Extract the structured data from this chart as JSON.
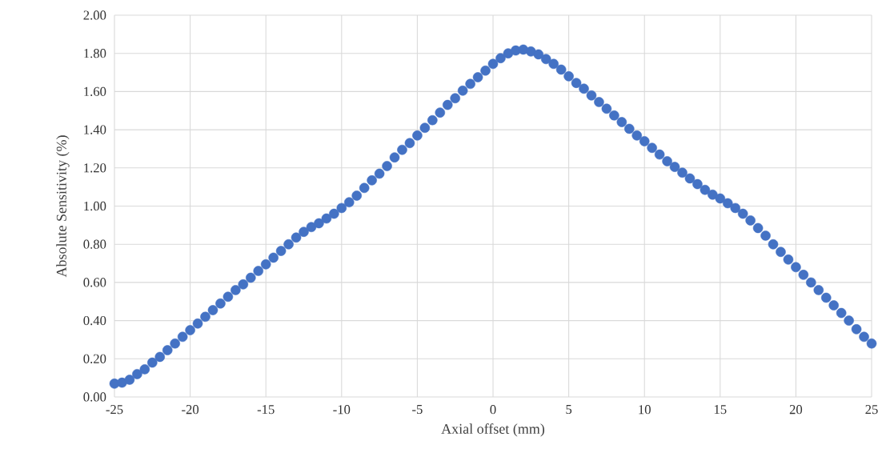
{
  "chart_data": {
    "type": "scatter",
    "xlabel": "Axial offset (mm)",
    "ylabel": "Absolute Sensitivity (%)",
    "x": [
      -25,
      -24.5,
      -24,
      -23.5,
      -23,
      -22.5,
      -22,
      -21.5,
      -21,
      -20.5,
      -20,
      -19.5,
      -19,
      -18.5,
      -18,
      -17.5,
      -17,
      -16.5,
      -16,
      -15.5,
      -15,
      -14.5,
      -14,
      -13.5,
      -13,
      -12.5,
      -12,
      -11.5,
      -11,
      -10.5,
      -10,
      -9.5,
      -9,
      -8.5,
      -8,
      -7.5,
      -7,
      -6.5,
      -6,
      -5.5,
      -5,
      -4.5,
      -4,
      -3.5,
      -3,
      -2.5,
      -2,
      -1.5,
      -1,
      -0.5,
      0,
      0.5,
      1,
      1.5,
      2,
      2.5,
      3,
      3.5,
      4,
      4.5,
      5,
      5.5,
      6,
      6.5,
      7,
      7.5,
      8,
      8.5,
      9,
      9.5,
      10,
      10.5,
      11,
      11.5,
      12,
      12.5,
      13,
      13.5,
      14,
      14.5,
      15,
      15.5,
      16,
      16.5,
      17,
      17.5,
      18,
      18.5,
      19,
      19.5,
      20,
      20.5,
      21,
      21.5,
      22,
      22.5,
      23,
      23.5,
      24,
      24.5,
      25
    ],
    "values": [
      0.07,
      0.075,
      0.09,
      0.12,
      0.145,
      0.18,
      0.21,
      0.245,
      0.28,
      0.315,
      0.35,
      0.385,
      0.42,
      0.455,
      0.49,
      0.525,
      0.56,
      0.59,
      0.625,
      0.66,
      0.695,
      0.73,
      0.765,
      0.8,
      0.835,
      0.865,
      0.89,
      0.91,
      0.935,
      0.96,
      0.99,
      1.02,
      1.055,
      1.095,
      1.135,
      1.17,
      1.21,
      1.255,
      1.295,
      1.33,
      1.37,
      1.41,
      1.45,
      1.49,
      1.53,
      1.565,
      1.605,
      1.64,
      1.675,
      1.71,
      1.745,
      1.775,
      1.8,
      1.815,
      1.82,
      1.81,
      1.795,
      1.77,
      1.745,
      1.715,
      1.68,
      1.645,
      1.615,
      1.58,
      1.545,
      1.51,
      1.475,
      1.44,
      1.405,
      1.37,
      1.34,
      1.305,
      1.27,
      1.235,
      1.205,
      1.175,
      1.145,
      1.115,
      1.085,
      1.06,
      1.04,
      1.015,
      0.99,
      0.96,
      0.925,
      0.885,
      0.845,
      0.8,
      0.76,
      0.72,
      0.68,
      0.64,
      0.6,
      0.56,
      0.52,
      0.48,
      0.44,
      0.4,
      0.355,
      0.315,
      0.28
    ],
    "color": "#4472c4",
    "marker": "circle",
    "grid": true,
    "xlim": [
      -25,
      25
    ],
    "xticks": [
      -25,
      -20,
      -15,
      -10,
      -5,
      0,
      5,
      10,
      15,
      20,
      25
    ],
    "ylim": [
      0,
      2
    ],
    "yticks": [
      {
        "value": 0,
        "label": "0.00"
      },
      {
        "value": 0.2,
        "label": "0.20"
      },
      {
        "value": 0.4,
        "label": "0.40"
      },
      {
        "value": 0.6,
        "label": "0.60"
      },
      {
        "value": 0.8,
        "label": "0.80"
      },
      {
        "value": 1,
        "label": "1.00"
      },
      {
        "value": 1.2,
        "label": "1.20"
      },
      {
        "value": 1.4,
        "label": "1.40"
      },
      {
        "value": 1.6,
        "label": "1.60"
      },
      {
        "value": 1.8,
        "label": "1.80"
      },
      {
        "value": 2,
        "label": "2.00"
      }
    ]
  }
}
